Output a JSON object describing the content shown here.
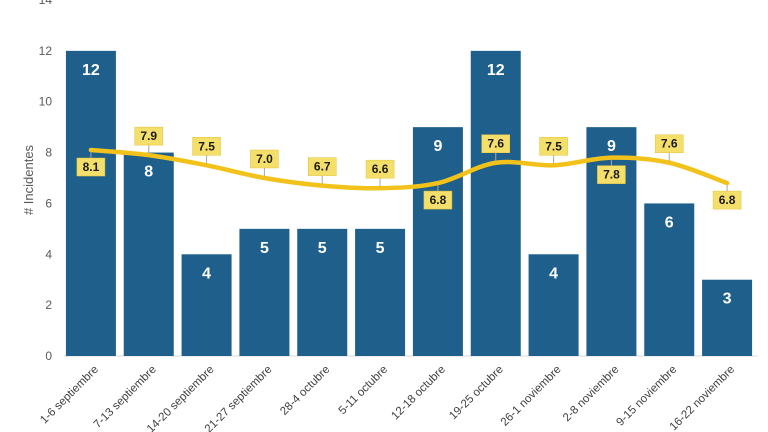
{
  "chart_data": {
    "type": "bar",
    "ylabel": "# Incidentes",
    "ylim": [
      0,
      14
    ],
    "yticks": [
      0,
      2,
      4,
      6,
      8,
      10,
      12,
      14
    ],
    "grid": false,
    "categories": [
      "1-6 septiembre",
      "7-13 septiembre",
      "14-20 septiembre",
      "21-27 septiembre",
      "28-4 octubre",
      "5-11 octubre",
      "12-18 octubre",
      "19-25 octubre",
      "26-1 noviembre",
      "2-8 noviembre",
      "9-15 noviembre",
      "16-22 noviembre"
    ],
    "series": [
      {
        "type": "bar",
        "values": [
          12,
          8,
          4,
          5,
          5,
          5,
          9,
          12,
          4,
          9,
          6,
          3
        ],
        "color": "#1f5f8b"
      },
      {
        "type": "line",
        "values": [
          8.1,
          7.9,
          7.5,
          7.0,
          6.7,
          6.6,
          6.8,
          7.6,
          7.5,
          7.8,
          7.6,
          6.8
        ],
        "labels": [
          "8.1",
          "7.9",
          "7.5",
          "7.0",
          "6.7",
          "6.6",
          "6.8",
          "7.6",
          "7.5",
          "7.8",
          "7.6",
          "6.8"
        ],
        "color": "#f2c21b",
        "label_bg": "#f5df6b"
      }
    ]
  }
}
